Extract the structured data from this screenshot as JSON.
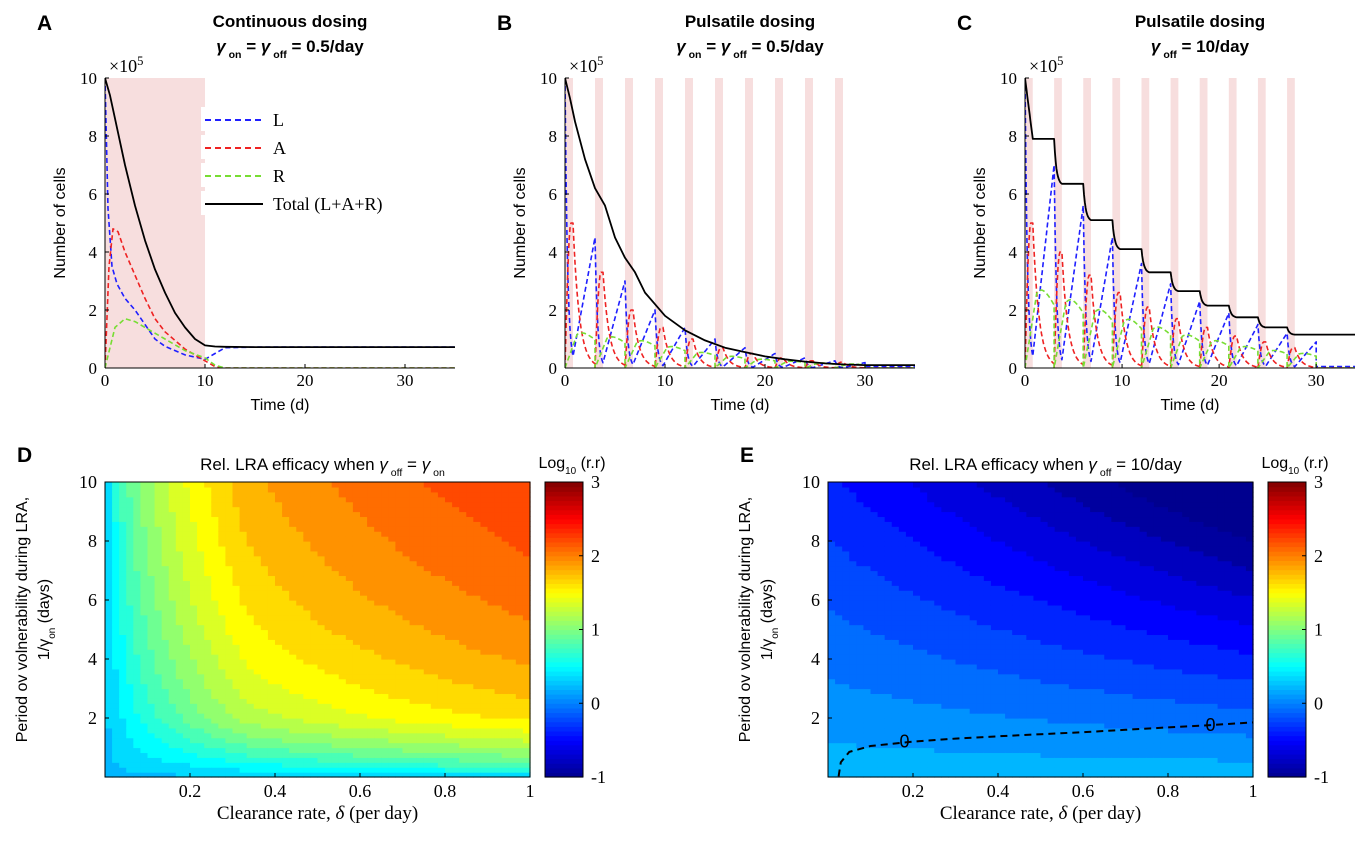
{
  "chart_data": [
    {
      "panel": "A",
      "type": "line",
      "title": "Continuous dosing",
      "subtitle": {
        "sym": "γ",
        "sub_on": "on",
        "eq": "=",
        "sub_off": "off",
        "value": "= 0.5/day"
      },
      "xlabel": "Time (d)",
      "ylabel": "Number of cells",
      "y_exponent": "×10",
      "y_exponent_power": "5",
      "xlim": [
        0,
        35
      ],
      "ylim": [
        0,
        10
      ],
      "xticks": [
        "0",
        "10",
        "20",
        "30"
      ],
      "yticks": [
        "0",
        "2",
        "4",
        "6",
        "8",
        "10"
      ],
      "dosing": "continuous",
      "dosing_windows": [
        [
          0,
          10
        ]
      ],
      "dosing_color": "#f7dede",
      "legend": {
        "position": "inside-top",
        "entries": [
          "L",
          "A",
          "R",
          "Total (L+A+R)"
        ]
      },
      "series": [
        {
          "name": "L",
          "color": "#1f1fff",
          "dash": true,
          "x": [
            0,
            0.3,
            0.7,
            1.2,
            2,
            3,
            4,
            5,
            6,
            8,
            10,
            11,
            12,
            15,
            20,
            25,
            30,
            35
          ],
          "y": [
            10,
            5.5,
            3.5,
            2.9,
            2.4,
            2.0,
            1.5,
            1.0,
            0.75,
            0.45,
            0.3,
            0.5,
            0.7,
            0.72,
            0.72,
            0.72,
            0.72,
            0.72
          ]
        },
        {
          "name": "A",
          "color": "#ee2222",
          "dash": true,
          "x": [
            0,
            0.4,
            0.8,
            1.3,
            2,
            3,
            4,
            5,
            6,
            8,
            10,
            11,
            12,
            20,
            35
          ],
          "y": [
            0,
            3.5,
            4.8,
            4.7,
            4.0,
            3.2,
            2.4,
            1.7,
            1.25,
            0.65,
            0.25,
            0.05,
            0,
            0,
            0
          ]
        },
        {
          "name": "R",
          "color": "#77dd33",
          "dash": true,
          "x": [
            0,
            0.5,
            1,
            2,
            3,
            4,
            5,
            6,
            8,
            10,
            11,
            12,
            20,
            35
          ],
          "y": [
            0,
            0.7,
            1.4,
            1.7,
            1.6,
            1.4,
            1.2,
            1.0,
            0.6,
            0.35,
            0.1,
            0,
            0,
            0
          ]
        },
        {
          "name": "Total (L+A+R)",
          "color": "#000000",
          "dash": false,
          "x": [
            0,
            0.5,
            1,
            2,
            3,
            4,
            5,
            6,
            7,
            8,
            9,
            10,
            11,
            12,
            15,
            20,
            25,
            30,
            35
          ],
          "y": [
            10,
            9.4,
            8.6,
            7.0,
            5.6,
            4.4,
            3.4,
            2.6,
            1.9,
            1.4,
            1.0,
            0.78,
            0.74,
            0.73,
            0.72,
            0.72,
            0.72,
            0.72,
            0.72
          ]
        }
      ]
    },
    {
      "panel": "B",
      "type": "line",
      "title": "Pulsatile dosing",
      "subtitle": {
        "sym": "γ",
        "sub_on": "on",
        "eq": "=",
        "sub_off": "off",
        "value": "= 0.5/day"
      },
      "xlabel": "Time (d)",
      "ylabel": "Number of cells",
      "y_exponent": "×10",
      "y_exponent_power": "5",
      "xlim": [
        0,
        35
      ],
      "ylim": [
        0,
        10
      ],
      "xticks": [
        "0",
        "10",
        "20",
        "30"
      ],
      "yticks": [
        "0",
        "2",
        "4",
        "6",
        "8",
        "10"
      ],
      "dosing": "pulsatile",
      "dosing_windows": [
        [
          0,
          0.8
        ],
        [
          3,
          3.8
        ],
        [
          6,
          6.8
        ],
        [
          9,
          9.8
        ],
        [
          12,
          12.8
        ],
        [
          15,
          15.8
        ],
        [
          18,
          18.8
        ],
        [
          21,
          21.8
        ],
        [
          24,
          24.8
        ],
        [
          27,
          27.8
        ]
      ],
      "dosing_color": "#f7dede",
      "total": {
        "x": [
          0,
          0.5,
          1,
          2,
          3,
          4,
          5,
          6,
          7,
          8,
          9,
          10,
          12,
          14,
          16,
          18,
          20,
          22,
          24,
          26,
          28,
          30,
          32,
          35
        ],
        "y": [
          10,
          9.3,
          8.5,
          7.2,
          6.2,
          5.6,
          4.5,
          3.8,
          3.3,
          2.6,
          2.2,
          1.8,
          1.3,
          0.95,
          0.7,
          0.55,
          0.4,
          0.3,
          0.22,
          0.16,
          0.12,
          0.1,
          0.1,
          0.1
        ]
      },
      "oscillation": {
        "L_peaks": [
          10,
          4.5,
          3.0,
          2.0,
          1.4,
          1.0,
          0.7,
          0.5,
          0.35,
          0.25
        ],
        "A_peaks": [
          5.0,
          3.3,
          2.0,
          1.4,
          1.0,
          0.7,
          0.5,
          0.35,
          0.25,
          0.2
        ],
        "R_peaks": [
          1.8,
          1.6,
          1.4,
          1.1,
          0.8,
          0.6,
          0.45,
          0.35,
          0.25,
          0.2
        ]
      },
      "series": [
        {
          "name": "L",
          "color": "#1f1fff",
          "dash": true
        },
        {
          "name": "A",
          "color": "#ee2222",
          "dash": true
        },
        {
          "name": "R",
          "color": "#77dd33",
          "dash": true
        },
        {
          "name": "Total (L+A+R)",
          "color": "#000000",
          "dash": false
        }
      ]
    },
    {
      "panel": "C",
      "type": "line",
      "title": "Pulsatile dosing",
      "subtitle": {
        "sym": "γ",
        "sub_off": "off",
        "value": "= 10/day"
      },
      "xlabel": "Time (d)",
      "ylabel": "Number of cells",
      "y_exponent": "×10",
      "y_exponent_power": "5",
      "xlim": [
        0,
        34
      ],
      "ylim": [
        0,
        10
      ],
      "xticks": [
        "0",
        "10",
        "20",
        "30"
      ],
      "yticks": [
        "0",
        "2",
        "4",
        "6",
        "8",
        "10"
      ],
      "dosing": "pulsatile",
      "dosing_windows": [
        [
          0,
          0.8
        ],
        [
          3,
          3.8
        ],
        [
          6,
          6.8
        ],
        [
          9,
          9.8
        ],
        [
          12,
          12.8
        ],
        [
          15,
          15.8
        ],
        [
          18,
          18.8
        ],
        [
          21,
          21.8
        ],
        [
          24,
          24.8
        ],
        [
          27,
          27.8
        ]
      ],
      "dosing_color": "#f7dede",
      "total_steps": [
        10,
        7.9,
        6.35,
        5.1,
        4.1,
        3.3,
        2.65,
        2.15,
        1.75,
        1.4,
        1.15,
        1.15
      ],
      "oscillation": {
        "L_peaks": [
          10,
          7.0,
          5.6,
          4.5,
          3.6,
          2.9,
          2.3,
          1.9,
          1.5,
          1.2
        ],
        "A_peaks": [
          5.0,
          4.0,
          3.2,
          2.6,
          2.1,
          1.7,
          1.4,
          1.1,
          0.9,
          0.7
        ],
        "R_peaks": [
          4.0,
          3.5,
          3.0,
          2.5,
          2.1,
          1.7,
          1.4,
          1.1,
          0.9,
          0.75
        ]
      },
      "series": [
        {
          "name": "L",
          "color": "#1f1fff",
          "dash": true
        },
        {
          "name": "A",
          "color": "#ee2222",
          "dash": true
        },
        {
          "name": "R",
          "color": "#77dd33",
          "dash": true
        },
        {
          "name": "Total (L+A+R)",
          "color": "#000000",
          "dash": false
        }
      ]
    },
    {
      "panel": "D",
      "type": "heatmap",
      "title": "Rel. LRA efficacy when",
      "title_math": {
        "sym": "γ",
        "sub_off": "off",
        "eq": "=",
        "sym2": "γ",
        "sub_on": "on"
      },
      "xlabel": "Clearance rate, δ (per day)",
      "ylabel_line1": "Period ov volnerability during LRA,",
      "ylabel_line2": "1/γ",
      "ylabel_line2_sub": "on",
      "ylabel_line2_tail": "(days)",
      "xlim": [
        0,
        1
      ],
      "ylim": [
        0,
        10
      ],
      "xticks": [
        "0.2",
        "0.4",
        "0.6",
        "0.8",
        "1"
      ],
      "yticks": [
        "2",
        "4",
        "6",
        "8",
        "10"
      ],
      "colorbar": {
        "label": "Log",
        "label_sub": "10",
        "label_tail": "(r.r)",
        "ticks": [
          "3",
          "2",
          "1",
          "0",
          "-1"
        ],
        "range": [
          -1,
          3
        ]
      },
      "model": "log10(2 + 9*x*y)",
      "contour_levels": 28
    },
    {
      "panel": "E",
      "type": "heatmap",
      "title": "Rel. LRA efficacy when",
      "title_math": {
        "sym": "γ",
        "sub_off": "off",
        "value": "= 10/day"
      },
      "xlabel": "Clearance rate, δ (per day)",
      "ylabel_line1": "Period ov volnerability during LRA,",
      "ylabel_line2": "1/γ",
      "ylabel_line2_sub": "on",
      "ylabel_line2_tail": "(days)",
      "xlim": [
        0,
        1
      ],
      "ylim": [
        0,
        10
      ],
      "xticks": [
        "0.2",
        "0.4",
        "0.6",
        "0.8",
        "1"
      ],
      "yticks": [
        "2",
        "4",
        "6",
        "8",
        "10"
      ],
      "colorbar": {
        "label": "Log",
        "label_sub": "10",
        "label_tail": "(r.r)",
        "ticks": [
          "3",
          "2",
          "1",
          "0",
          "-1"
        ],
        "range": [
          -1,
          3
        ]
      },
      "model": "0.12 - 0.06*(y-1.3) - 0.09*x*y",
      "contour_levels": 28,
      "zero_contour": {
        "label": "0",
        "x": [
          0.025,
          0.03,
          0.05,
          0.1,
          0.2,
          0.3,
          0.4,
          0.5,
          0.6,
          0.7,
          0.8,
          0.9,
          1.0
        ],
        "y": [
          0.02,
          0.5,
          0.85,
          1.05,
          1.2,
          1.3,
          1.38,
          1.45,
          1.52,
          1.6,
          1.68,
          1.76,
          1.85
        ]
      }
    }
  ]
}
